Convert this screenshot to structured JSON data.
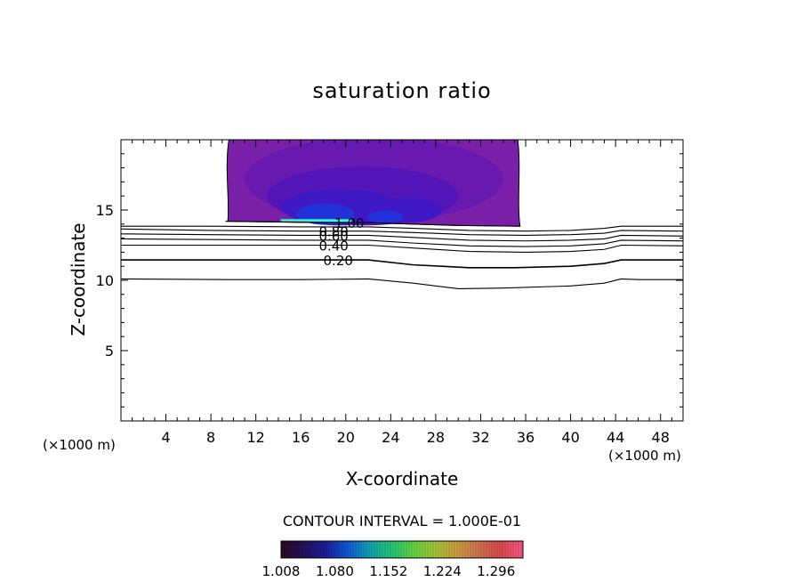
{
  "chart_data": {
    "type": "contour",
    "title": "saturation ratio",
    "xlabel": "X-coordinate",
    "ylabel": "Z-coordinate",
    "x_unit_label": "(×1000 m)",
    "xlim": [
      0,
      50
    ],
    "ylim": [
      0,
      20
    ],
    "xticks": [
      4,
      8,
      12,
      16,
      20,
      24,
      28,
      32,
      36,
      40,
      44,
      48
    ],
    "yticks": [
      5,
      10,
      15
    ],
    "contour_interval_label": "CONTOUR INTERVAL = 1.000E-01",
    "contour_lines": [
      {
        "level": "0.20",
        "labeled": true,
        "label_x": 18,
        "points": [
          [
            0,
            11.45
          ],
          [
            8,
            11.45
          ],
          [
            16,
            11.45
          ],
          [
            22,
            11.45
          ],
          [
            26,
            11.1
          ],
          [
            31,
            10.9
          ],
          [
            35,
            10.9
          ],
          [
            40,
            11.0
          ],
          [
            43,
            11.2
          ],
          [
            44.5,
            11.45
          ],
          [
            50,
            11.45
          ]
        ]
      },
      {
        "level": "",
        "labeled": false,
        "points": [
          [
            0,
            10.1
          ],
          [
            10,
            10.05
          ],
          [
            16,
            10.05
          ],
          [
            22,
            10.1
          ],
          [
            26,
            9.8
          ],
          [
            30,
            9.4
          ],
          [
            34,
            9.45
          ],
          [
            40,
            9.6
          ],
          [
            43,
            9.8
          ],
          [
            44.5,
            10.1
          ],
          [
            46,
            10.05
          ],
          [
            50,
            10.05
          ]
        ]
      },
      {
        "level": "0.40",
        "labeled": true,
        "label_x": 17.6,
        "points": [
          [
            0,
            12.5
          ],
          [
            8,
            12.5
          ],
          [
            16,
            12.5
          ],
          [
            22,
            12.5
          ],
          [
            26,
            12.3
          ],
          [
            31,
            12.05
          ],
          [
            36,
            12.0
          ],
          [
            40,
            12.05
          ],
          [
            43,
            12.2
          ],
          [
            44.5,
            12.5
          ],
          [
            50,
            12.45
          ]
        ]
      },
      {
        "level": "",
        "labeled": false,
        "points": [
          [
            0,
            12.95
          ],
          [
            8,
            12.9
          ],
          [
            16,
            12.85
          ],
          [
            22,
            12.85
          ],
          [
            26,
            12.65
          ],
          [
            31,
            12.45
          ],
          [
            36,
            12.4
          ],
          [
            40,
            12.45
          ],
          [
            43,
            12.6
          ],
          [
            44.5,
            12.85
          ],
          [
            50,
            12.8
          ]
        ]
      },
      {
        "level": "0.60",
        "labeled": true,
        "label_x": 17.6,
        "points": [
          [
            0,
            13.3
          ],
          [
            8,
            13.25
          ],
          [
            16,
            13.2
          ],
          [
            22,
            13.2
          ],
          [
            26,
            13.05
          ],
          [
            31,
            12.85
          ],
          [
            36,
            12.8
          ],
          [
            40,
            12.85
          ],
          [
            43,
            12.95
          ],
          [
            44.5,
            13.2
          ],
          [
            50,
            13.15
          ]
        ]
      },
      {
        "level": "0.80",
        "labeled": true,
        "label_x": 17.6,
        "points": [
          [
            0,
            13.65
          ],
          [
            8,
            13.55
          ],
          [
            16,
            13.5
          ],
          [
            22,
            13.5
          ],
          [
            26,
            13.4
          ],
          [
            31,
            13.25
          ],
          [
            36,
            13.2
          ],
          [
            40,
            13.25
          ],
          [
            43,
            13.35
          ],
          [
            44.5,
            13.55
          ],
          [
            50,
            13.5
          ]
        ]
      },
      {
        "level": "",
        "labeled": false,
        "points": [
          [
            0,
            13.85
          ],
          [
            8,
            13.85
          ],
          [
            16,
            13.8
          ],
          [
            22,
            13.8
          ],
          [
            26,
            13.7
          ],
          [
            31,
            13.55
          ],
          [
            36,
            13.5
          ],
          [
            40,
            13.55
          ],
          [
            43,
            13.7
          ],
          [
            44.5,
            13.85
          ],
          [
            50,
            13.85
          ]
        ]
      },
      {
        "level": "1.00",
        "labeled": true,
        "label_x": 19.0,
        "points": [
          [
            9.3,
            14.2
          ],
          [
            14,
            14.15
          ],
          [
            18,
            14.1
          ],
          [
            22,
            14.1
          ],
          [
            26,
            14.0
          ],
          [
            30,
            13.9
          ],
          [
            35.5,
            13.85
          ]
        ]
      }
    ],
    "supersaturated_region": {
      "x_range": [
        9.3,
        35.5
      ],
      "z_range": [
        13.85,
        20
      ],
      "fill_levels": [
        {
          "level": 1.008,
          "color": "#7a1fa8"
        },
        {
          "level": 1.03,
          "color": "#6819b0"
        },
        {
          "level": 1.05,
          "color": "#5315b8"
        },
        {
          "level": 1.07,
          "color": "#3d18c4"
        },
        {
          "level": 1.1,
          "color": "#2232d8"
        },
        {
          "level": 1.13,
          "color": "#1a6ef0"
        },
        {
          "level": 1.2,
          "color": "#33ffcc"
        }
      ]
    },
    "colorbar": {
      "ticks": [
        "1.008",
        "1.080",
        "1.152",
        "1.224",
        "1.296"
      ],
      "range": [
        1.008,
        1.332
      ],
      "colors": [
        "#2e0820",
        "#26105a",
        "#1c1c9a",
        "#1058d8",
        "#12a2b8",
        "#22c878",
        "#60d842",
        "#a8c83a",
        "#d0a040",
        "#d27450",
        "#e04a4a",
        "#ff5a8a"
      ]
    }
  }
}
